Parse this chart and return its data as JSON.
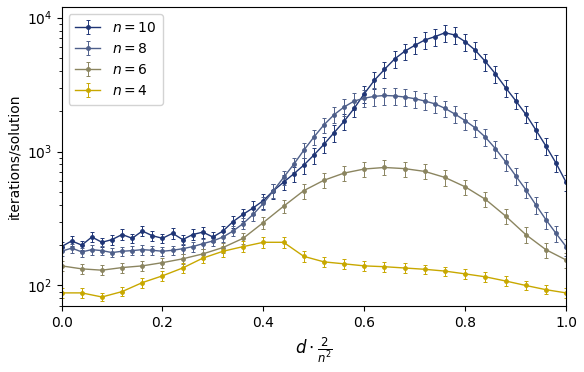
{
  "title": "",
  "xlabel": "$d \\cdot \\frac{2}{n^2}$",
  "ylabel": "iterations/solution",
  "xlim": [
    0.0,
    1.0
  ],
  "ylim_log": [
    70,
    12000
  ],
  "series": [
    {
      "label": "$n = 10$",
      "color": "#1f3575",
      "x": [
        0.0,
        0.02,
        0.04,
        0.06,
        0.08,
        0.1,
        0.12,
        0.14,
        0.16,
        0.18,
        0.2,
        0.22,
        0.24,
        0.26,
        0.28,
        0.3,
        0.32,
        0.34,
        0.36,
        0.38,
        0.4,
        0.42,
        0.44,
        0.46,
        0.48,
        0.5,
        0.52,
        0.54,
        0.56,
        0.58,
        0.6,
        0.62,
        0.64,
        0.66,
        0.68,
        0.7,
        0.72,
        0.74,
        0.76,
        0.78,
        0.8,
        0.82,
        0.84,
        0.86,
        0.88,
        0.9,
        0.92,
        0.94,
        0.96,
        0.98,
        1.0
      ],
      "y": [
        195,
        215,
        200,
        230,
        210,
        220,
        240,
        225,
        255,
        235,
        225,
        245,
        220,
        240,
        250,
        230,
        255,
        300,
        340,
        380,
        430,
        510,
        590,
        680,
        790,
        940,
        1130,
        1380,
        1680,
        2100,
        2700,
        3400,
        4100,
        4900,
        5600,
        6200,
        6800,
        7200,
        7700,
        7400,
        6600,
        5700,
        4700,
        3800,
        3000,
        2400,
        1900,
        1450,
        1100,
        820,
        590
      ],
      "yerr": [
        15,
        18,
        15,
        20,
        17,
        19,
        22,
        19,
        23,
        20,
        19,
        22,
        19,
        22,
        23,
        20,
        23,
        30,
        35,
        45,
        55,
        65,
        75,
        90,
        110,
        130,
        160,
        195,
        240,
        300,
        390,
        490,
        580,
        690,
        800,
        900,
        990,
        1050,
        1100,
        1060,
        950,
        820,
        680,
        540,
        430,
        340,
        270,
        205,
        155,
        115,
        80
      ]
    },
    {
      "label": "$n = 8$",
      "color": "#4e5f8a",
      "x": [
        0.0,
        0.02,
        0.04,
        0.06,
        0.08,
        0.1,
        0.12,
        0.14,
        0.16,
        0.18,
        0.2,
        0.22,
        0.24,
        0.26,
        0.28,
        0.3,
        0.32,
        0.34,
        0.36,
        0.38,
        0.4,
        0.42,
        0.44,
        0.46,
        0.48,
        0.5,
        0.52,
        0.54,
        0.56,
        0.58,
        0.6,
        0.62,
        0.64,
        0.66,
        0.68,
        0.7,
        0.72,
        0.74,
        0.76,
        0.78,
        0.8,
        0.82,
        0.84,
        0.86,
        0.88,
        0.9,
        0.92,
        0.94,
        0.96,
        0.98,
        1.0
      ],
      "y": [
        180,
        190,
        178,
        185,
        182,
        176,
        180,
        182,
        185,
        183,
        180,
        183,
        188,
        195,
        205,
        215,
        230,
        255,
        290,
        340,
        410,
        510,
        640,
        800,
        1020,
        1280,
        1580,
        1880,
        2150,
        2380,
        2500,
        2580,
        2620,
        2600,
        2550,
        2480,
        2380,
        2270,
        2100,
        1900,
        1700,
        1500,
        1280,
        1050,
        840,
        660,
        520,
        400,
        310,
        245,
        195
      ],
      "yerr": [
        14,
        15,
        14,
        15,
        14,
        14,
        14,
        14,
        15,
        14,
        14,
        14,
        15,
        16,
        17,
        18,
        20,
        23,
        28,
        35,
        45,
        58,
        75,
        100,
        130,
        165,
        210,
        260,
        305,
        340,
        360,
        375,
        380,
        375,
        365,
        355,
        340,
        320,
        300,
        270,
        245,
        215,
        180,
        150,
        120,
        94,
        74,
        57,
        44,
        35,
        28
      ]
    },
    {
      "label": "$n = 6$",
      "color": "#8b8560",
      "x": [
        0.0,
        0.04,
        0.08,
        0.12,
        0.16,
        0.2,
        0.24,
        0.28,
        0.32,
        0.36,
        0.4,
        0.44,
        0.48,
        0.52,
        0.56,
        0.6,
        0.64,
        0.68,
        0.72,
        0.76,
        0.8,
        0.84,
        0.88,
        0.92,
        0.96,
        1.0
      ],
      "y": [
        140,
        133,
        130,
        136,
        140,
        148,
        158,
        172,
        192,
        225,
        295,
        390,
        510,
        610,
        690,
        740,
        760,
        745,
        710,
        640,
        545,
        440,
        330,
        240,
        185,
        155
      ],
      "yerr": [
        12,
        11,
        11,
        12,
        12,
        13,
        14,
        15,
        17,
        20,
        30,
        45,
        65,
        80,
        90,
        95,
        98,
        96,
        92,
        83,
        71,
        57,
        43,
        31,
        24,
        20
      ]
    },
    {
      "label": "$n = 4$",
      "color": "#c8a800",
      "x": [
        0.0,
        0.04,
        0.08,
        0.12,
        0.16,
        0.2,
        0.24,
        0.28,
        0.32,
        0.36,
        0.4,
        0.44,
        0.48,
        0.52,
        0.56,
        0.6,
        0.64,
        0.68,
        0.72,
        0.76,
        0.8,
        0.84,
        0.88,
        0.92,
        0.96,
        1.0
      ],
      "y": [
        88,
        88,
        82,
        90,
        105,
        118,
        135,
        160,
        180,
        195,
        210,
        210,
        165,
        150,
        145,
        140,
        138,
        135,
        132,
        128,
        122,
        116,
        108,
        100,
        93,
        88
      ],
      "yerr": [
        7,
        7,
        6,
        7,
        9,
        10,
        12,
        14,
        16,
        18,
        20,
        20,
        15,
        13,
        12,
        12,
        11,
        11,
        11,
        10,
        10,
        9,
        9,
        8,
        7,
        7
      ]
    }
  ],
  "xticks": [
    0.0,
    0.2,
    0.4,
    0.6,
    0.8,
    1.0
  ],
  "legend_loc": "upper left",
  "marker": "o",
  "markersize": 2.5,
  "linewidth": 1.0,
  "capsize": 1.5
}
